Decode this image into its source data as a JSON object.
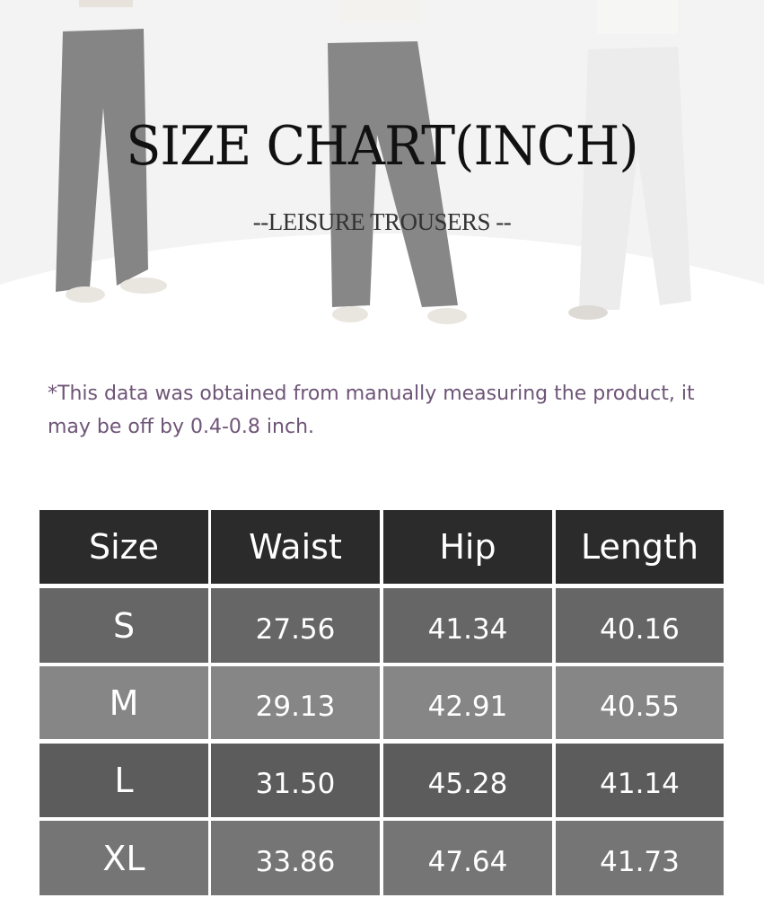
{
  "header": {
    "title": "SIZE CHART(INCH)",
    "subtitle": "--LEISURE TROUSERS --"
  },
  "note": "*This data was obtained from manually measuring the product, it may be off by 0.4-0.8 inch.",
  "colors": {
    "header_bg": "#2b2b2b",
    "note_text": "#6e5577",
    "row_bg": [
      "#666666",
      "#868686",
      "#5c5c5c",
      "#757575"
    ]
  },
  "table": {
    "columns": [
      "Size",
      "Waist",
      "Hip",
      "Length"
    ],
    "rows": [
      [
        "S",
        "27.56",
        "41.34",
        "40.16"
      ],
      [
        "M",
        "29.13",
        "42.91",
        "40.55"
      ],
      [
        "L",
        "31.50",
        "45.28",
        "41.14"
      ],
      [
        "XL",
        "33.86",
        "47.64",
        "41.73"
      ]
    ]
  }
}
